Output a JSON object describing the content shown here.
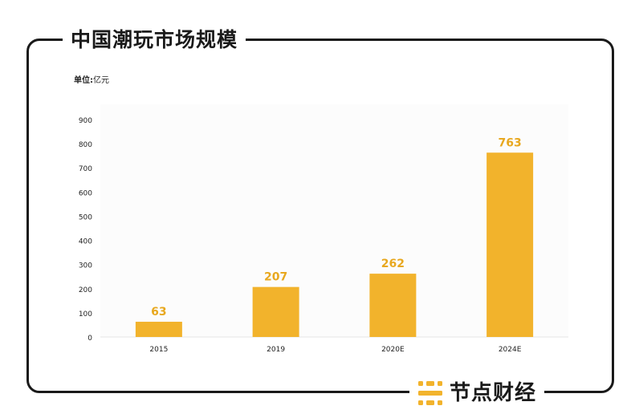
{
  "header": {
    "title": "中国潮玩市场规模"
  },
  "unit": {
    "label": "单位:",
    "value": "亿元"
  },
  "brand": {
    "name": "节点财经",
    "logo_icon": "node-logo-icon"
  },
  "watermark": {
    "text": "节点财经"
  },
  "colors": {
    "bar": "#F2B32C",
    "label": "#E8A81F",
    "frame": "#1a1a1a",
    "axis_text": "#222222"
  },
  "chart_data": {
    "type": "bar",
    "categories": [
      "2015",
      "2019",
      "2020E",
      "2024E"
    ],
    "values": [
      63,
      207,
      262,
      763
    ],
    "title": "中国潮玩市场规模",
    "xlabel": "",
    "ylabel": "",
    "ylim": [
      0,
      900
    ],
    "yticks": [
      0,
      100,
      200,
      300,
      400,
      500,
      600,
      700,
      800,
      900
    ],
    "grid": false,
    "legend": "none"
  }
}
